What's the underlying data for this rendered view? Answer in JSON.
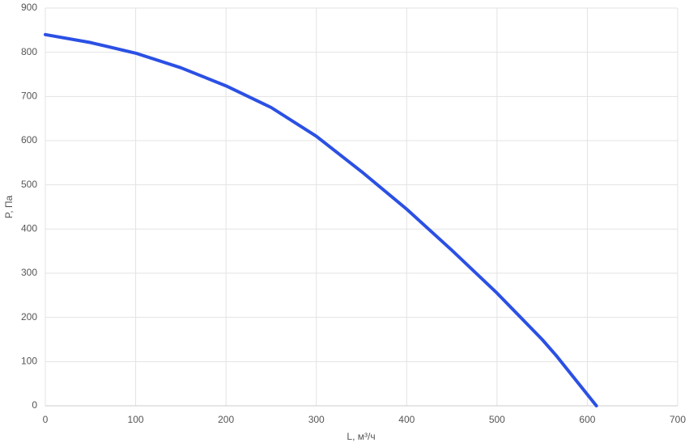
{
  "chart_data": {
    "type": "line",
    "x_label": "L, м³/ч",
    "y_label": "P, Па",
    "x": [
      0,
      50,
      100,
      150,
      200,
      250,
      300,
      350,
      400,
      450,
      500,
      550,
      565,
      610
    ],
    "series": [
      {
        "color": "#2b50e4",
        "values": [
          840,
          822,
          798,
          765,
          724,
          675,
          610,
          530,
          445,
          352,
          255,
          150,
          115,
          0
        ]
      }
    ],
    "xlim": [
      0,
      700
    ],
    "xticks": [
      0,
      100,
      200,
      300,
      400,
      500,
      600,
      700
    ],
    "ylim": [
      0,
      900
    ],
    "yticks": [
      0,
      100,
      200,
      300,
      400,
      500,
      600,
      700,
      800,
      900
    ],
    "grid": true
  }
}
